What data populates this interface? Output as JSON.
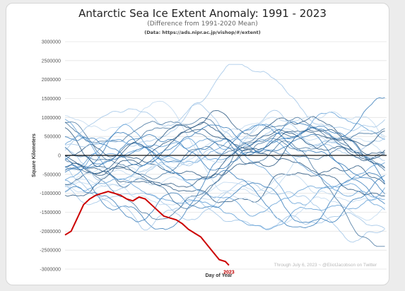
{
  "chart_data": {
    "type": "line",
    "title": "Antarctic Sea Ice Extent Anomaly: 1991 - 2023",
    "subtitle": "(Difference from 1991-2020 Mean)",
    "source_note": "(Data: https://ads.nipr.ac.jp/vishop/#/extent)",
    "xlabel": "Day of Year",
    "ylabel": "Square Kilometers",
    "ylim": [
      -3000000,
      3000000
    ],
    "y_ticks": [
      "3000000",
      "2500000",
      "2000000",
      "1500000",
      "1000000",
      "500000",
      "0",
      "-500000",
      "-1000000",
      "-1500000",
      "-2000000",
      "-2500000",
      "-3000000"
    ],
    "xlim": [
      1,
      366
    ],
    "grid": true,
    "credit": "Through July 6, 2023 ~ @EliotJacobson on Twitter",
    "highlight_color": "#cc0000",
    "historical_colors": [
      "#1f4e79",
      "#2e75b6",
      "#5b9bd5",
      "#9dc3e6",
      "#bdd7ee",
      "#41719c"
    ],
    "highlight_series": {
      "name": "2023",
      "x": [
        1,
        8,
        15,
        22,
        29,
        36,
        43,
        50,
        57,
        64,
        71,
        78,
        85,
        92,
        99,
        106,
        113,
        120,
        127,
        134,
        141,
        148,
        155,
        162,
        169,
        176,
        183,
        187
      ],
      "values": [
        -2100000,
        -2000000,
        -1650000,
        -1300000,
        -1150000,
        -1050000,
        -1000000,
        -950000,
        -1000000,
        -1050000,
        -1150000,
        -1200000,
        -1100000,
        -1150000,
        -1300000,
        -1450000,
        -1600000,
        -1650000,
        -1700000,
        -1800000,
        -1950000,
        -2050000,
        -2150000,
        -2350000,
        -2550000,
        -2750000,
        -2800000,
        -2900000
      ]
    }
  }
}
